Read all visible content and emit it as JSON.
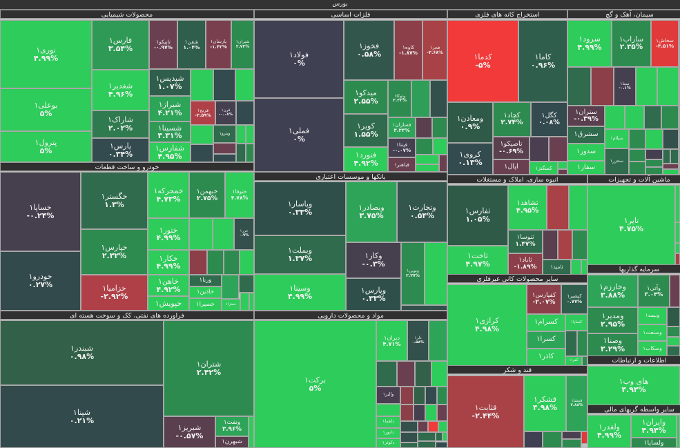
{
  "title": "بورس",
  "sectors": [
    {
      "title": "محصولات شیمیایی",
      "tiles": [
        {
          "name": "نوری۱",
          "change": "۴.۹۹%",
          "color": "#2ecc5a"
        },
        {
          "name": "بوعلی۱",
          "change": "۵%",
          "color": "#2ecc5a"
        },
        {
          "name": "پترول۱",
          "change": "۵%",
          "color": "#2ecc5a"
        },
        {
          "name": "فارس۱",
          "change": "۳.۵۴%",
          "color": "#2e9a56"
        },
        {
          "name": "شغدیر۱",
          "change": "۴.۹۶%",
          "color": "#2ecc5a"
        },
        {
          "name": "شاراک۱",
          "change": "۲.۰۲%",
          "color": "#2f7a4e"
        },
        {
          "name": "پارس۱",
          "change": "۰.۳۴%",
          "color": "#334a4e"
        },
        {
          "name": "تاپیکو۱",
          "change": "-۰.۹۷%",
          "color": "#6a4050"
        },
        {
          "name": "شفن۱",
          "change": "۱.۰۴%",
          "color": "#2f5f4c"
        },
        {
          "name": "پارسان۱",
          "change": "-۱.۴۲%",
          "color": "#7a3f4e"
        },
        {
          "name": "شیران۱",
          "change": "۲.۷۳%",
          "color": "#2e8b50"
        },
        {
          "name": "شپدیس۱",
          "change": "۱.۰۷%",
          "color": "#2f5f4c"
        },
        {
          "name": "شیراز۱",
          "change": "۴.۲۱%",
          "color": "#2ea458"
        },
        {
          "name": "شسینا۱",
          "change": "۳.۳۱%",
          "color": "#2e9a56"
        },
        {
          "name": "شفارس۱",
          "change": "۴.۹۵%",
          "color": "#2ecc5a"
        },
        {
          "name": "قرنج۱",
          "change": "-۲.۵۹%",
          "color": "#b04048"
        },
        {
          "name": "قرن۱",
          "change": "-۰.۰۸%",
          "color": "#454050"
        },
        {
          "name": "ویترو۱",
          "change": "",
          "color": "#2f6b4c"
        }
      ]
    },
    {
      "title": "خودرو و ساخت قطعات",
      "tiles": [
        {
          "name": "خساپا۱",
          "change": "-۰.۲۴%",
          "color": "#463f4e"
        },
        {
          "name": "خودرو۱",
          "change": "۰.۲۷%",
          "color": "#334a4c"
        },
        {
          "name": "خگستر۱",
          "change": "۱.۳%",
          "color": "#2f6b4c"
        },
        {
          "name": "خپارس۱",
          "change": "۲.۳۲%",
          "color": "#2e8b50"
        },
        {
          "name": "خزامیا۱",
          "change": "-۲.۹۲%",
          "color": "#b04048"
        },
        {
          "name": "خمحرکه۱",
          "change": "۴.۷۳%",
          "color": "#2ecc5a"
        },
        {
          "name": "خبهمن۱",
          "change": "۲.۷۵%",
          "color": "#2e8b50"
        },
        {
          "name": "ختوقا۱",
          "change": "۴.۷۸%",
          "color": "#2ecc5a"
        },
        {
          "name": "ختور۱",
          "change": "۴.۹۹%",
          "color": "#2ecc5a"
        },
        {
          "name": "خکار۱",
          "change": "۴.۹۹%",
          "color": "#2ecc5a"
        },
        {
          "name": "خاهن۱",
          "change": "۴.۹۲%",
          "color": "#2ecc5a"
        },
        {
          "name": "خپویش۱",
          "change": "",
          "color": "#2ecc5a"
        },
        {
          "name": "خزر۱",
          "change": "۰.۹%",
          "color": "#33504c"
        },
        {
          "name": "ورنا۱",
          "change": "",
          "color": "#2f6b4c"
        },
        {
          "name": "خاذین۱",
          "change": "",
          "color": "#2ecc5a"
        },
        {
          "name": "خصیرا۱",
          "change": "",
          "color": "#2ecc5a"
        },
        {
          "name": "خفترا۱",
          "change": "",
          "color": "#2ecc5a"
        }
      ]
    },
    {
      "title": "فراورده های نفتی، کک و سوخت هسته ای",
      "tiles": [
        {
          "name": "شبندر۱",
          "change": "۰.۹۸%",
          "color": "#336048"
        },
        {
          "name": "شپنا۱",
          "change": "۰.۲۱%",
          "color": "#334a4c"
        },
        {
          "name": "شتران۱",
          "change": "۲.۴۲%",
          "color": "#2e8b50"
        },
        {
          "name": "شبریز۱",
          "change": "-۰.۵۷%",
          "color": "#5a3f4e"
        },
        {
          "name": "ونفت۱",
          "change": "۳.۹۶%",
          "color": "#2ea458"
        },
        {
          "name": "شبهرن۱",
          "change": "",
          "color": "#5a3f4e"
        }
      ]
    },
    {
      "title": "فلزات اساسی",
      "tiles": [
        {
          "name": "فولاد۱",
          "change": "۰%",
          "color": "#3f4152"
        },
        {
          "name": "فملی۱",
          "change": "۰%",
          "color": "#3f4152"
        },
        {
          "name": "فخوز۱",
          "change": "۰.۵۸%",
          "color": "#33564c"
        },
        {
          "name": "کاوه۱",
          "change": "-۱.۸۷%",
          "color": "#8c3f48"
        },
        {
          "name": "فجر۱",
          "change": "-۲.۶۸%",
          "color": "#a84246"
        },
        {
          "name": "میدکو۱",
          "change": "۲.۵۵%",
          "color": "#2e8b50"
        },
        {
          "name": "کویر۱",
          "change": "۱.۵۵%",
          "color": "#2f6b4c"
        },
        {
          "name": "فنورد۱",
          "change": "۴.۹۲%",
          "color": "#2ecc5a"
        },
        {
          "name": "وتوکا۱",
          "change": "۲.۲۳%",
          "color": "#2e8b50"
        },
        {
          "name": "فسازان۱",
          "change": "۳.۲۳%",
          "color": "#2ea458"
        },
        {
          "name": "فپنتا۱",
          "change": "-۰.۰۷%",
          "color": "#454050"
        },
        {
          "name": "فباهنر۱",
          "change": "",
          "color": "#6a4050"
        }
      ]
    },
    {
      "title": "بانکها و موسسات اعتباری",
      "tiles": [
        {
          "name": "وپاسار۱",
          "change": "۰.۳۳%",
          "color": "#2f4f4a"
        },
        {
          "name": "وبملت۱",
          "change": "۱.۳۷%",
          "color": "#2f6b4c"
        },
        {
          "name": "وسینا۱",
          "change": "۴.۹۹%",
          "color": "#2ecc5a"
        },
        {
          "name": "وبصادر۱",
          "change": "۳.۷۵%",
          "color": "#2ea458"
        },
        {
          "name": "وتجارت۱",
          "change": "۰.۵۴%",
          "color": "#33564c"
        },
        {
          "name": "وکار۱",
          "change": "-۰.۳%",
          "color": "#463f4e"
        },
        {
          "name": "وپارس۱",
          "change": "۰.۳۳%",
          "color": "#2f4f4a"
        },
        {
          "name": "ونوین۱",
          "change": "۲.۲۷%",
          "color": "#2e8b50"
        }
      ]
    },
    {
      "title": "مواد و محصولات دارویی",
      "tiles": [
        {
          "name": "برکت۱",
          "change": "۵%",
          "color": "#2ecc5a"
        },
        {
          "name": "دیران۱",
          "change": "۴.۷۱%",
          "color": "#2ecc5a"
        },
        {
          "name": "دلر۱",
          "change": "۰.۵۸%",
          "color": "#33504c"
        },
        {
          "name": "والبر۱",
          "change": "",
          "color": "#4a3f50"
        },
        {
          "name": "دلقما۱",
          "change": "",
          "color": "#2ecc5a"
        },
        {
          "name": "دابور۱",
          "change": "",
          "color": "#2ecc5a"
        },
        {
          "name": "دکوثر۱",
          "change": "",
          "color": "#2ecc5a"
        }
      ]
    },
    {
      "title": "استخراج کانه های فلزی",
      "tiles": [
        {
          "name": "کدما۱",
          "change": "-۵%",
          "color": "#f23a3a"
        },
        {
          "name": "کاما۱",
          "change": "۰.۹۶%",
          "color": "#2f5f4c"
        },
        {
          "name": "ومعادن۱",
          "change": "۰.۹%",
          "color": "#2f5a48"
        },
        {
          "name": "کروی۱",
          "change": "۰.۱۳%",
          "color": "#334a4e"
        },
        {
          "name": "کچاد۱",
          "change": "۲.۷۴%",
          "color": "#2e8b50"
        },
        {
          "name": "کگل۱",
          "change": "۰.۰۸%",
          "color": "#334a4e"
        },
        {
          "name": "تاصیکو۱",
          "change": "-۰.۶۹%",
          "color": "#5a3f4e"
        },
        {
          "name": "اپال۱",
          "change": "",
          "color": "#6a4050"
        },
        {
          "name": "کمنگنز۱",
          "change": "",
          "color": "#2ecc5a"
        }
      ]
    },
    {
      "title": "سیمان، آهک و گچ",
      "tiles": [
        {
          "name": "سرود۱",
          "change": "۴.۹۹%",
          "color": "#2ecc5a"
        },
        {
          "name": "ساراب۱",
          "change": "۲.۳۵%",
          "color": "#2e8b50"
        },
        {
          "name": "سخاش۱",
          "change": "-۴.۵۱%",
          "color": "#e03a3a"
        },
        {
          "name": "سیتا۱",
          "change": "-۰.۱%",
          "color": "#454050"
        },
        {
          "name": "ستران۱",
          "change": "-۰.۳۹%",
          "color": "#5a3f4e"
        },
        {
          "name": "سشرق۱",
          "change": "",
          "color": "#2f6b4c"
        },
        {
          "name": "سدور۱",
          "change": "",
          "color": "#2ecc5a"
        },
        {
          "name": "سفار۱",
          "change": "",
          "color": "#2ecc5a"
        },
        {
          "name": "سیلام۱",
          "change": "",
          "color": "#2ecc5a"
        },
        {
          "name": "سخزر۱",
          "change": "",
          "color": "#2f6b4c"
        }
      ]
    },
    {
      "title": "انبوه سازی، املاک و مستغلات",
      "tiles": [
        {
          "name": "ثفارس۱",
          "change": "۱.۰۵%",
          "color": "#2f5a48"
        },
        {
          "name": "ثاخت۱",
          "change": "۴.۹۷%",
          "color": "#2ecc5a"
        },
        {
          "name": "ثشاهد۱",
          "change": "۴.۹۵%",
          "color": "#2ecc5a"
        },
        {
          "name": "ثنوسا۱",
          "change": "۱.۴۷%",
          "color": "#2f6b4c"
        },
        {
          "name": "ثاباد۱",
          "change": "-۱.۸۹%",
          "color": "#8c3f48"
        },
        {
          "name": "ثامید۱",
          "change": "",
          "color": "#2f6b4c"
        }
      ]
    },
    {
      "title": "سایر محصولات کانی غیرفلزی",
      "tiles": [
        {
          "name": "کرازی۱",
          "change": "۴.۹۸%",
          "color": "#2ecc5a"
        },
        {
          "name": "کفپارس۱",
          "change": "-۲.۰۷%",
          "color": "#8c3f48"
        },
        {
          "name": "کپشیر۱",
          "change": "۰.۷۷%",
          "color": "#2f5f4c"
        },
        {
          "name": "کسرام۱",
          "change": "",
          "color": "#2ecc5a"
        },
        {
          "name": "کسرا۱",
          "change": "",
          "color": "#2ea458"
        },
        {
          "name": "کاذر۱",
          "change": "",
          "color": "#2ecc5a"
        },
        {
          "name": "کساپا۱",
          "change": "",
          "color": "#2ecc5a"
        },
        {
          "name": "کفرا۱",
          "change": "",
          "color": "#2ecc5a"
        }
      ]
    },
    {
      "title": "قند و شکر",
      "tiles": [
        {
          "name": "قثابت۱",
          "change": "-۲.۴۴%",
          "color": "#a84246"
        },
        {
          "name": "قشکر۱",
          "change": "۴.۹۸%",
          "color": "#2ecc5a"
        },
        {
          "name": "قنیشا۱",
          "change": "۲.۸۸%",
          "color": "#2ea458"
        }
      ]
    },
    {
      "title": "ماشین آلات و تجهیزات",
      "tiles": [
        {
          "name": "تایر۱",
          "change": "۴.۷۵%",
          "color": "#2ecc5a"
        }
      ]
    },
    {
      "title": "سرمایه گذاریها",
      "tiles": [
        {
          "name": "وخارزم۱",
          "change": "۳.۸۸%",
          "color": "#2ea458"
        },
        {
          "name": "وآتی۱",
          "change": "۳.۰۴%",
          "color": "#2e8b50"
        },
        {
          "name": "ومدیر۱",
          "change": "۲.۹۵%",
          "color": "#2e8b50"
        },
        {
          "name": "وصنا۱",
          "change": "۳.۲۹%",
          "color": "#2e8b50"
        },
        {
          "name": "وبیمه۱",
          "change": "",
          "color": "#2ecc5a"
        },
        {
          "name": "وصنعت۱",
          "change": "",
          "color": "#2ecc5a"
        },
        {
          "name": "وسکاب۱",
          "change": "",
          "color": "#2ecc5a"
        }
      ]
    },
    {
      "title": "اطلاعات و ارتباطات",
      "tiles": [
        {
          "name": "های وب۱",
          "change": "۴.۹۳%",
          "color": "#2ecc5a"
        }
      ]
    },
    {
      "title": "سایر واسطه گریهای مالی",
      "tiles": [
        {
          "name": "ولغدر۱",
          "change": "۴.۹۹%",
          "color": "#2ecc5a"
        },
        {
          "name": "وایران۱",
          "change": "۴.۹۴%",
          "color": "#2ecc5a"
        },
        {
          "name": "ولساپا۱",
          "change": "",
          "color": "#2e8b50"
        }
      ]
    }
  ]
}
